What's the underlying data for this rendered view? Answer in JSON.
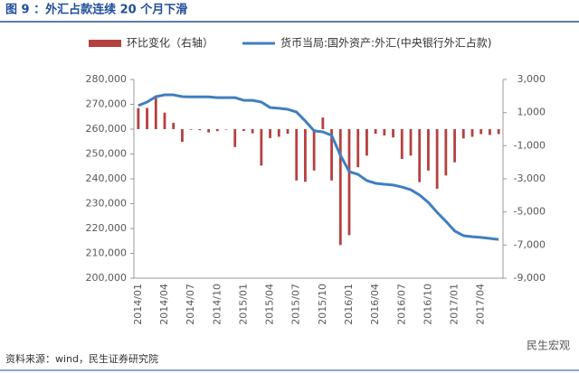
{
  "chart_data": {
    "type": "bar_line",
    "title": "图 9 ：外汇占款连续 20 个月下滑",
    "source": "资料来源：wind，民生证券研究院",
    "watermark": "民生宏观",
    "categories": [
      "2014/01",
      null,
      null,
      "2014/04",
      null,
      null,
      "2014/07",
      null,
      null,
      "2014/10",
      null,
      null,
      "2015/01",
      null,
      null,
      "2015/04",
      null,
      null,
      "2015/07",
      null,
      null,
      "2015/10",
      null,
      null,
      "2016/01",
      null,
      null,
      "2016/04",
      null,
      null,
      "2016/07",
      null,
      null,
      "2016/10",
      null,
      null,
      "2017/01",
      null,
      null,
      "2017/04",
      null,
      null
    ],
    "series": [
      {
        "name": "环比变化（右轴）",
        "color": "#b5403f",
        "axis": "y2",
        "kind": "bar",
        "values": [
          1270,
          1280,
          1890,
          1000,
          380,
          -770,
          -40,
          -60,
          -200,
          -120,
          -20,
          -1080,
          -110,
          -250,
          -2200,
          -540,
          -460,
          -280,
          -3100,
          -3180,
          -2500,
          700,
          -3100,
          -7000,
          -6400,
          -2300,
          -1600,
          -280,
          -380,
          -500,
          -1800,
          -1600,
          -3200,
          -2500,
          -3600,
          -2800,
          -2000,
          -560,
          -460,
          -300,
          -350,
          -300
        ]
      },
      {
        "name": "货币当局:国外资产:外汇(中央银行外汇占款)",
        "color": "#3f7fc0",
        "kind": "line",
        "values": [
          269500,
          270900,
          273100,
          273800,
          273800,
          273100,
          273000,
          273000,
          273000,
          272700,
          272700,
          272700,
          271600,
          271600,
          270900,
          268700,
          268400,
          268000,
          266900,
          263300,
          259300,
          258900,
          257500,
          249500,
          242900,
          241800,
          239300,
          238200,
          237800,
          237500,
          236700,
          235600,
          233500,
          230500,
          226500,
          222900,
          219000,
          217100,
          216700,
          216400,
          216000,
          215600
        ]
      }
    ],
    "ylim": [
      200000,
      280000
    ],
    "yticks": [
      {
        "value": 200000,
        "label": "200,000"
      },
      {
        "value": 210000,
        "label": "210,000"
      },
      {
        "value": 220000,
        "label": "220,000"
      },
      {
        "value": 230000,
        "label": "230,000"
      },
      {
        "value": 240000,
        "label": "240,000"
      },
      {
        "value": 250000,
        "label": "250,000"
      },
      {
        "value": 260000,
        "label": "260,000"
      },
      {
        "value": 270000,
        "label": "270,000"
      },
      {
        "value": 280000,
        "label": "280,000"
      }
    ],
    "y2lim": [
      -9000,
      3000
    ],
    "y2ticks": [
      {
        "value": -9000,
        "label": "-9,000"
      },
      {
        "value": -7000,
        "label": "-7,000"
      },
      {
        "value": -5000,
        "label": "-5,000"
      },
      {
        "value": -3000,
        "label": "-3,000"
      },
      {
        "value": -1000,
        "label": "-1,000"
      },
      {
        "value": 1000,
        "label": "1,000"
      },
      {
        "value": 3000,
        "label": "3,000"
      }
    ]
  }
}
